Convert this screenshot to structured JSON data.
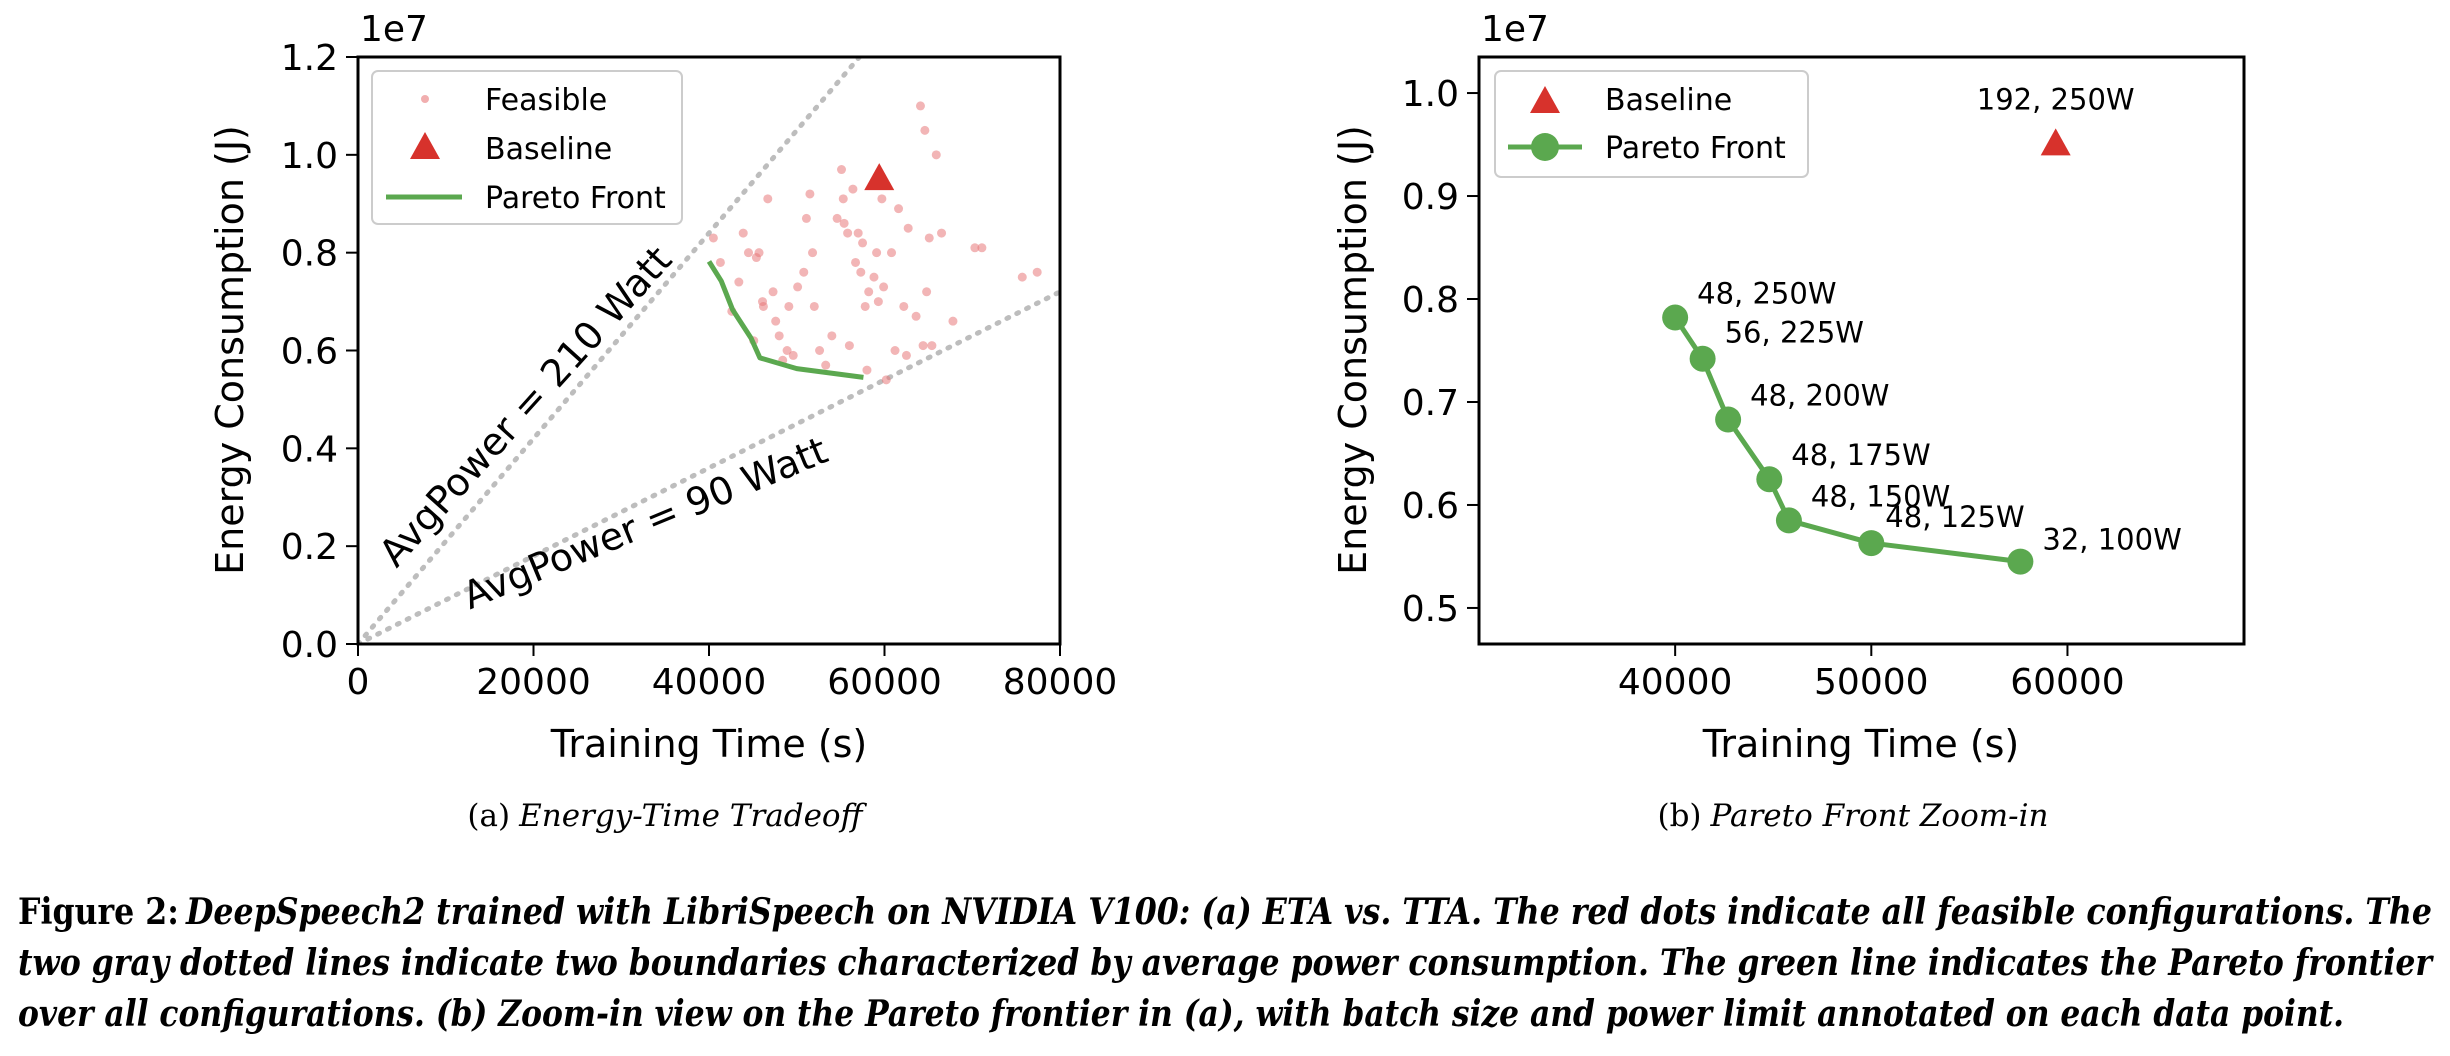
{
  "chart_data": [
    {
      "type": "scatter",
      "subcaption_label": "(a)",
      "subcaption_title": "Energy-Time Tradeoff",
      "xlabel": "Training Time (s)",
      "ylabel": "Energy Consumption (J)",
      "y_offset_text": "1e7",
      "xlim": [
        0,
        80000
      ],
      "ylim": [
        0,
        1.2
      ],
      "x_ticks": [
        "0",
        "20000",
        "40000",
        "60000",
        "80000"
      ],
      "y_ticks": [
        "0.0",
        "0.2",
        "0.4",
        "0.6",
        "0.8",
        "1.0",
        "1.2"
      ],
      "legend": {
        "placement": "top-left",
        "entries": [
          "Feasible",
          "Baseline",
          "Pareto Front"
        ]
      },
      "colors": {
        "feasible": "#e8787a",
        "baseline": "#d7322c",
        "pareto": "#5ba84f",
        "boundary": "#bdbdbd"
      },
      "series": [
        {
          "name": "Feasible",
          "x": [
            40500,
            41300,
            42600,
            43400,
            43900,
            44500,
            45100,
            45400,
            45700,
            46100,
            46200,
            46700,
            47300,
            47600,
            48000,
            48400,
            48900,
            49100,
            49600,
            50100,
            50800,
            51100,
            51500,
            51800,
            52000,
            52600,
            53300,
            54000,
            54600,
            55100,
            55300,
            55400,
            55800,
            56000,
            56400,
            56700,
            57000,
            57300,
            57500,
            57800,
            58000,
            58200,
            58800,
            59100,
            59300,
            59700,
            59900,
            60200,
            60800,
            61200,
            61600,
            62200,
            62500,
            62700,
            63600,
            64100,
            64400,
            64600,
            64800,
            65100,
            65400,
            65900,
            66500,
            67800,
            70300,
            71100,
            75700,
            77400
          ],
          "y": [
            0.83,
            0.78,
            0.68,
            0.74,
            0.84,
            0.8,
            0.62,
            0.79,
            0.8,
            0.7,
            0.69,
            0.91,
            0.72,
            0.66,
            0.63,
            0.58,
            0.6,
            0.69,
            0.59,
            0.73,
            0.76,
            0.87,
            0.92,
            0.8,
            0.69,
            0.6,
            0.57,
            0.63,
            0.87,
            0.97,
            0.91,
            0.86,
            0.84,
            0.61,
            0.93,
            0.78,
            0.84,
            0.76,
            0.82,
            0.69,
            0.56,
            0.72,
            0.75,
            0.8,
            0.7,
            0.91,
            0.73,
            0.54,
            0.8,
            0.6,
            0.89,
            0.69,
            0.59,
            0.85,
            0.67,
            1.1,
            0.61,
            1.05,
            0.72,
            0.83,
            0.61,
            1.0,
            0.84,
            0.66,
            0.81,
            0.81,
            0.75,
            0.76
          ]
        },
        {
          "name": "Baseline",
          "x": [
            59400
          ],
          "y": [
            0.95
          ]
        },
        {
          "name": "Pareto Front",
          "x": [
            40000,
            41400,
            42700,
            44800,
            45800,
            50000,
            57600
          ],
          "y": [
            0.782,
            0.742,
            0.683,
            0.625,
            0.585,
            0.563,
            0.545
          ]
        }
      ],
      "annotations": [
        {
          "text": "AvgPower = 210 Watt",
          "slope_watt": 210
        },
        {
          "text": "AvgPower = 90 Watt",
          "slope_watt": 90
        }
      ]
    },
    {
      "type": "line",
      "subcaption_label": "(b)",
      "subcaption_title": "Pareto Front Zoom-in",
      "xlabel": "Training Time (s)",
      "ylabel": "Energy Consumption (J)",
      "y_offset_text": "1e7",
      "xlim": [
        30000,
        69000
      ],
      "ylim": [
        0.465,
        1.035
      ],
      "x_ticks": [
        "40000",
        "50000",
        "60000"
      ],
      "y_ticks": [
        "0.5",
        "0.6",
        "0.7",
        "0.8",
        "0.9",
        "1.0"
      ],
      "legend": {
        "placement": "top-left",
        "entries": [
          "Baseline",
          "Pareto Front"
        ]
      },
      "colors": {
        "baseline": "#d7322c",
        "pareto": "#5ba84f"
      },
      "series": [
        {
          "name": "Baseline",
          "x": [
            59400
          ],
          "y": [
            0.95
          ],
          "labels": [
            "192, 250W"
          ]
        },
        {
          "name": "Pareto Front",
          "x": [
            40000,
            41400,
            42700,
            44800,
            45800,
            50000,
            57600
          ],
          "y": [
            0.782,
            0.742,
            0.683,
            0.625,
            0.585,
            0.563,
            0.545
          ],
          "labels": [
            "48, 250W",
            "56, 225W",
            "48, 200W",
            "48, 175W",
            "48, 150W",
            "48, 125W",
            "32, 100W"
          ]
        }
      ]
    }
  ],
  "figure_caption": {
    "label": "Figure 2:",
    "lines": [
      "DeepSpeech2 trained with LibriSpeech on NVIDIA V100: (a) ETA vs. TTA. The red dots indicate all feasible configurations. The",
      "two gray dotted lines indicate two boundaries characterized by average power consumption. The green line indicates the Pareto frontier",
      "over all configurations. (b) Zoom-in view on the Pareto frontier in (a), with batch size and power limit annotated on each data point."
    ]
  }
}
